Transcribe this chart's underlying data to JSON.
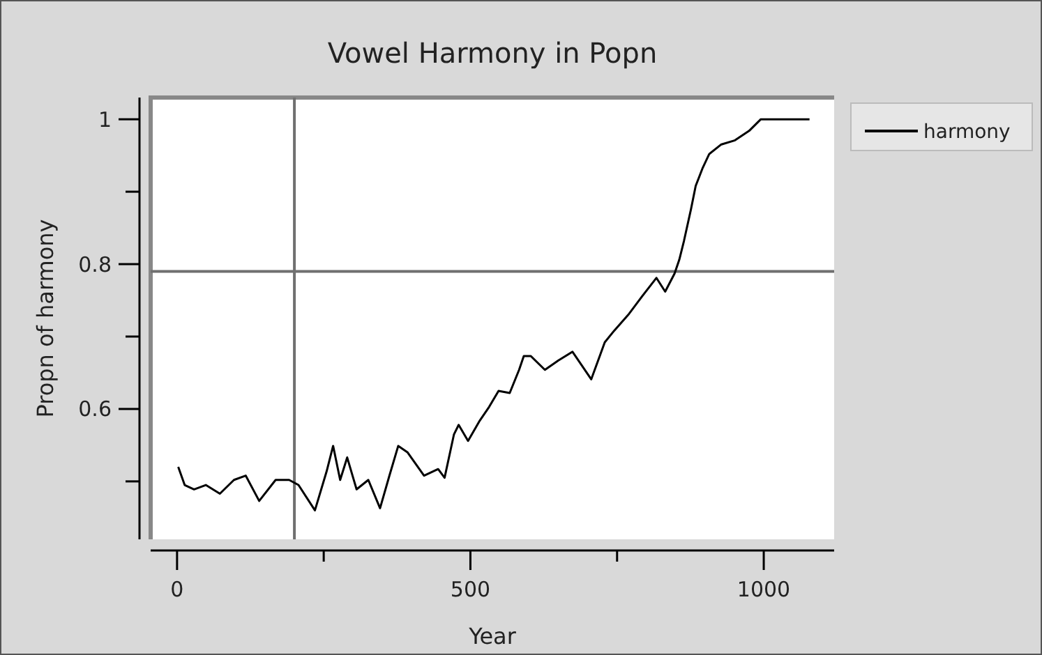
{
  "chart_data": {
    "type": "line",
    "title": "Vowel Harmony in Popn",
    "xlabel": "Year",
    "ylabel": "Propn of harmony",
    "x": [
      2,
      13,
      29,
      49,
      73,
      97,
      117,
      140,
      168,
      191,
      207,
      235,
      255,
      266,
      278,
      290,
      306,
      326,
      346,
      362,
      377,
      393,
      421,
      445,
      456,
      472,
      480,
      496,
      516,
      532,
      548,
      567,
      583,
      591,
      603,
      627,
      650,
      674,
      706,
      729,
      745,
      769,
      793,
      817,
      832,
      848,
      856,
      864,
      876,
      884,
      896,
      907,
      927,
      951,
      975,
      995,
      1078
    ],
    "series": [
      {
        "name": "harmony",
        "color": "#000000",
        "values": [
          0.52,
          0.495,
          0.489,
          0.495,
          0.483,
          0.502,
          0.508,
          0.473,
          0.502,
          0.502,
          0.495,
          0.46,
          0.514,
          0.549,
          0.502,
          0.533,
          0.489,
          0.502,
          0.463,
          0.508,
          0.549,
          0.54,
          0.508,
          0.517,
          0.505,
          0.565,
          0.578,
          0.556,
          0.584,
          0.603,
          0.625,
          0.622,
          0.654,
          0.673,
          0.673,
          0.654,
          0.667,
          0.679,
          0.641,
          0.692,
          0.708,
          0.73,
          0.756,
          0.781,
          0.762,
          0.787,
          0.806,
          0.832,
          0.876,
          0.908,
          0.933,
          0.952,
          0.965,
          0.971,
          0.984,
          1.0,
          1.0
        ]
      }
    ],
    "xlim": [
      -45,
      1120
    ],
    "ylim": [
      0.42,
      1.03
    ],
    "xticks": [
      0,
      {
        "value": 250,
        "label": null
      },
      500,
      {
        "value": 750,
        "label": null
      },
      1000
    ],
    "yticks": [
      {
        "value": 0.5,
        "label": null
      },
      0.6,
      {
        "value": 0.7,
        "label": null
      },
      0.8,
      {
        "value": 0.9,
        "label": null
      },
      1
    ],
    "ref_lines": [
      {
        "axis": "x",
        "value": 200,
        "label": null,
        "color": "#707070"
      },
      {
        "axis": "y",
        "value": 0.79,
        "label": null,
        "color": "#707070"
      }
    ],
    "legend": "top right",
    "grid": false,
    "marker": "none",
    "line_style": "solid"
  }
}
